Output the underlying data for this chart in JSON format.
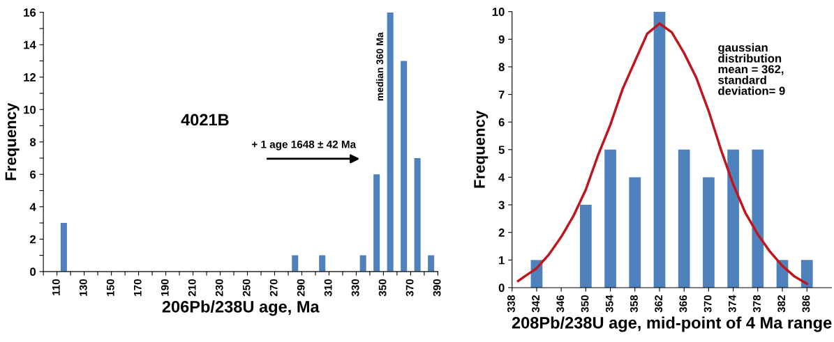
{
  "chart_data": [
    {
      "type": "bar",
      "xlabel": "206Pb/238U age, Ma",
      "ylabel": "Frequency",
      "x": [
        115,
        285,
        305,
        335,
        345,
        355,
        365,
        375,
        385
      ],
      "series": [
        {
          "color": "#4f81bd",
          "values": [
            3,
            1,
            1,
            1,
            6,
            16,
            13,
            7,
            1
          ]
        }
      ],
      "xlim": [
        100,
        390
      ],
      "xticks": [
        {
          "value": 100,
          "label": null
        },
        110,
        {
          "value": 120,
          "label": null
        },
        130,
        {
          "value": 140,
          "label": null
        },
        150,
        {
          "value": 160,
          "label": null
        },
        170,
        {
          "value": 180,
          "label": null
        },
        190,
        {
          "value": 200,
          "label": null
        },
        210,
        {
          "value": 220,
          "label": null
        },
        230,
        {
          "value": 240,
          "label": null
        },
        250,
        {
          "value": 260,
          "label": null
        },
        270,
        {
          "value": 280,
          "label": null
        },
        290,
        {
          "value": 300,
          "label": null
        },
        310,
        {
          "value": 320,
          "label": null
        },
        330,
        {
          "value": 340,
          "label": null
        },
        350,
        {
          "value": 360,
          "label": null
        },
        370,
        {
          "value": 380,
          "label": null
        },
        390
      ],
      "ylim": [
        0,
        16
      ],
      "yticks": [
        0,
        {
          "value": 1,
          "label": null
        },
        2,
        {
          "value": 3,
          "label": null
        },
        4,
        {
          "value": 5,
          "label": null
        },
        6,
        {
          "value": 7,
          "label": null
        },
        8,
        {
          "value": 9,
          "label": null
        },
        10,
        {
          "value": 11,
          "label": null
        },
        12,
        {
          "value": 13,
          "label": null
        },
        14,
        {
          "value": 15,
          "label": null
        },
        16
      ],
      "annotations": [
        "4021B",
        "+ 1 age 1648 ± 42 Ma",
        "median 360 Ma"
      ],
      "grid": false
    },
    {
      "type": "bar",
      "xlabel": "208Pb/238U age, mid-point of 4 Ma range",
      "ylabel": "Frequency",
      "series": [
        {
          "color": "#4f81bd",
          "x": [
            342,
            346,
            350,
            354,
            358,
            362,
            366,
            370,
            374,
            378,
            382,
            386
          ],
          "values": [
            1,
            0,
            3,
            5,
            4,
            10,
            5,
            4,
            5,
            5,
            1,
            1
          ]
        },
        {
          "type": "line",
          "color": "#c0161b",
          "x": [
            339,
            340,
            342,
            344,
            346,
            348,
            350,
            352,
            354,
            356,
            358,
            360,
            362,
            364,
            366,
            368,
            370,
            372,
            374,
            376,
            378,
            380,
            382,
            384,
            386
          ],
          "values": [
            0.24,
            0.4,
            0.7,
            1.2,
            1.84,
            2.6,
            3.55,
            4.8,
            5.9,
            7.2,
            8.2,
            9.2,
            9.57,
            9.25,
            8.5,
            7.6,
            6.4,
            5.0,
            3.74,
            2.7,
            1.93,
            1.3,
            0.79,
            0.4,
            0.14
          ]
        }
      ],
      "xlim": [
        338,
        390
      ],
      "xticks": [
        338,
        342,
        346,
        350,
        354,
        358,
        362,
        366,
        370,
        374,
        378,
        382,
        386
      ],
      "ylim": [
        0,
        10
      ],
      "yticks": [
        0,
        1,
        2,
        3,
        4,
        5,
        6,
        7,
        8,
        9,
        10
      ],
      "annotations": [
        "gaussian\ndistribution\nmean = 362,\nstandard\ndeviation= 9"
      ],
      "grid": false
    }
  ]
}
